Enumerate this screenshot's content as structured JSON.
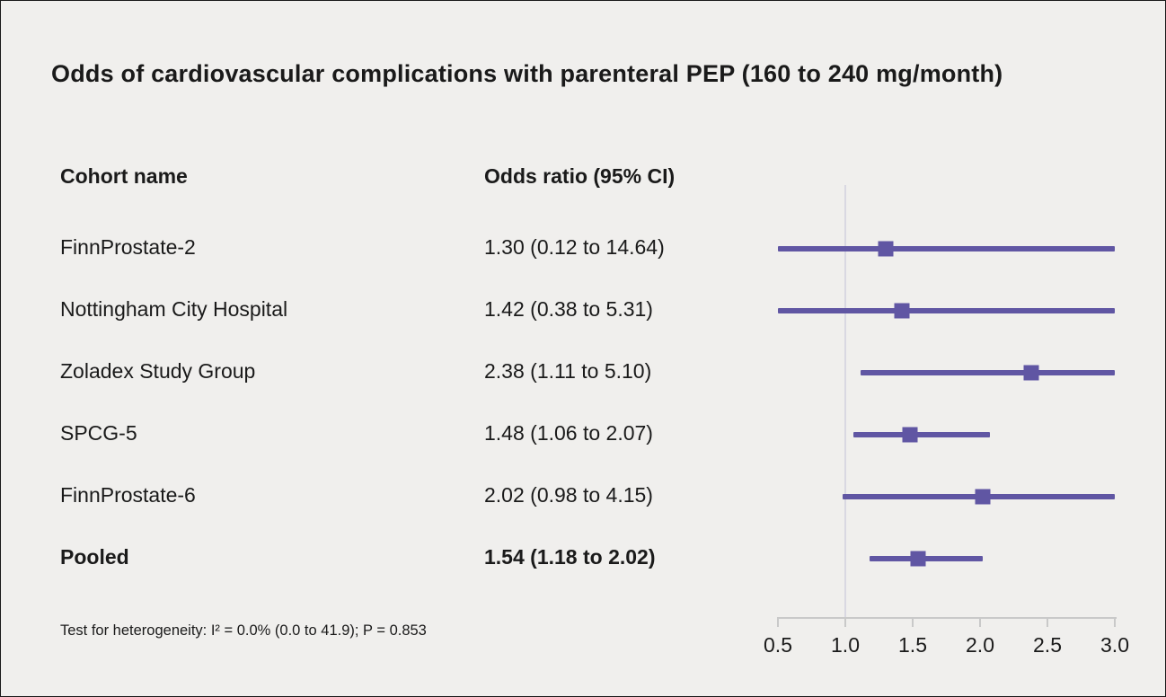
{
  "title": "Odds of cardiovascular complications with parenteral PEP (160 to 240 mg/month)",
  "columns": {
    "cohort": "Cohort name",
    "odds": "Odds ratio (95% CI)"
  },
  "footer": "Test for heterogeneity: I² = 0.0% (0.0 to 41.9); P = 0.853",
  "colors": {
    "marker": "#6056a3",
    "ci_line": "#6056a3",
    "reference_line": "#d9d8e2",
    "axis": "#c9c9c9",
    "background": "#f0efed",
    "text": "#1a1a1a"
  },
  "chart_data": {
    "type": "forest",
    "title": "Odds of cardiovascular complications with parenteral PEP (160 to 240 mg/month)",
    "xlabel": "Odds ratio",
    "xlim": [
      0.5,
      3.0
    ],
    "reference_value": 1.0,
    "ticks": [
      {
        "value": 0.5,
        "label": "0.5"
      },
      {
        "value": 1.0,
        "label": "1.0"
      },
      {
        "value": 1.5,
        "label": "1.5"
      },
      {
        "value": 2.0,
        "label": "2.0"
      },
      {
        "value": 2.5,
        "label": "2.5"
      },
      {
        "value": 3.0,
        "label": "3.0"
      }
    ],
    "rows": [
      {
        "name": "FinnProstate-2",
        "label": "1.30 (0.12 to 14.64)",
        "estimate": 1.3,
        "lower": 0.12,
        "upper": 14.64,
        "pooled": false
      },
      {
        "name": "Nottingham City Hospital",
        "label": "1.42 (0.38 to 5.31)",
        "estimate": 1.42,
        "lower": 0.38,
        "upper": 5.31,
        "pooled": false
      },
      {
        "name": "Zoladex Study Group",
        "label": "2.38 (1.11 to 5.10)",
        "estimate": 2.38,
        "lower": 1.11,
        "upper": 5.1,
        "pooled": false
      },
      {
        "name": "SPCG-5",
        "label": "1.48 (1.06 to 2.07)",
        "estimate": 1.48,
        "lower": 1.06,
        "upper": 2.07,
        "pooled": false
      },
      {
        "name": "FinnProstate-6",
        "label": "2.02 (0.98 to 4.15)",
        "estimate": 2.02,
        "lower": 0.98,
        "upper": 4.15,
        "pooled": false
      },
      {
        "name": "Pooled",
        "label": "1.54 (1.18 to 2.02)",
        "estimate": 1.54,
        "lower": 1.18,
        "upper": 2.02,
        "pooled": true
      }
    ]
  }
}
